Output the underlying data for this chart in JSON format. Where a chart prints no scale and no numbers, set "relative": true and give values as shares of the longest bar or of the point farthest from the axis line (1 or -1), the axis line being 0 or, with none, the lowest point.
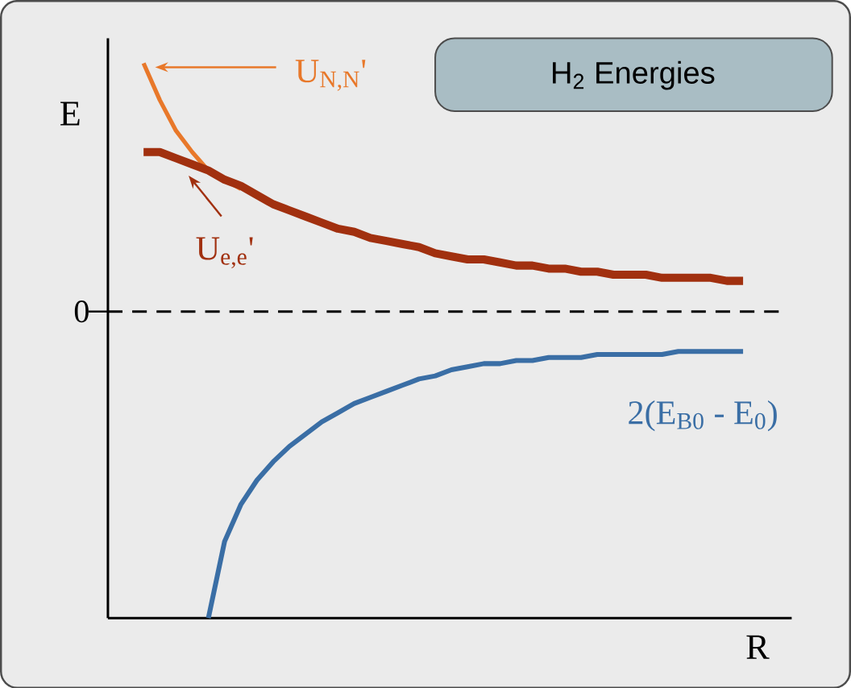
{
  "chart_data": {
    "type": "line",
    "title": "H$_{2}$  Energies",
    "xlabel": "R",
    "ylabel": "E",
    "relative": true,
    "marker": "none",
    "categories": [
      null,
      null,
      null,
      null,
      null,
      null,
      null,
      null,
      null,
      null,
      null,
      null,
      null,
      null,
      null,
      null,
      null,
      null,
      null,
      null,
      null,
      null,
      null,
      null,
      null,
      null,
      null,
      null,
      null,
      null,
      null,
      null,
      null,
      null,
      null,
      null,
      null,
      null
    ],
    "series": [
      {
        "name": "U$_{N,N}$'",
        "color": "#e8782a",
        "values": [
          0.81,
          0.69,
          0.59,
          0.52,
          0.46,
          0.43,
          0.4,
          null,
          null,
          null,
          null,
          null,
          null,
          null,
          null,
          null,
          null,
          null,
          null,
          null,
          null,
          null,
          null,
          null,
          null,
          null,
          null,
          null,
          null,
          null,
          null,
          null,
          null,
          null,
          null,
          null,
          null,
          null
        ]
      },
      {
        "name": "U$_{e,e}$'",
        "color": "#a1300f",
        "values": [
          0.52,
          0.52,
          0.5,
          0.48,
          0.46,
          0.43,
          0.41,
          0.38,
          0.35,
          0.33,
          0.31,
          0.29,
          0.27,
          0.26,
          0.24,
          0.23,
          0.22,
          0.21,
          0.19,
          0.18,
          0.17,
          0.17,
          0.16,
          0.15,
          0.15,
          0.14,
          0.14,
          0.13,
          0.13,
          0.12,
          0.12,
          0.12,
          0.11,
          0.11,
          0.11,
          0.11,
          0.1,
          0.1
        ]
      },
      {
        "name": "2(E$_{B0}$ - E$_{0}$)",
        "color": "#3a6ea5",
        "values": [
          null,
          null,
          null,
          null,
          -1,
          -0.75,
          -0.63,
          -0.55,
          -0.49,
          -0.44,
          -0.4,
          -0.36,
          -0.33,
          -0.3,
          -0.28,
          -0.26,
          -0.24,
          -0.22,
          -0.21,
          -0.19,
          -0.18,
          -0.17,
          -0.17,
          -0.16,
          -0.16,
          -0.15,
          -0.15,
          -0.15,
          -0.14,
          -0.14,
          -0.14,
          -0.14,
          -0.14,
          -0.13,
          -0.13,
          -0.13,
          -0.13,
          -0.13
        ]
      }
    ],
    "ref_lines": [
      {
        "axis": "y",
        "value": 0,
        "label": "0",
        "line_style": "dashed",
        "color": "#000000"
      }
    ]
  }
}
